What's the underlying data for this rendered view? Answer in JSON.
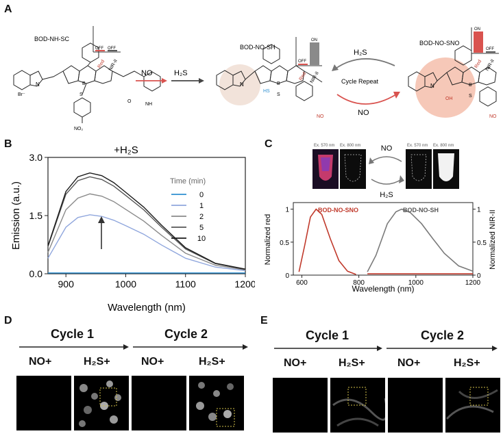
{
  "panels": {
    "a": "A",
    "b": "B",
    "c": "C",
    "d": "D",
    "e": "E"
  },
  "panelA": {
    "mol1": "BOD-NH-SC",
    "mol2": "BOD-NO-SH",
    "mol3": "BOD-NO-SNO",
    "arrowNO": "NO",
    "arrowH2S": "H₂S",
    "cycleTop": "H₂S",
    "cycleMid": "Cycle Repeat",
    "cycleBot": "NO",
    "off": "OFF",
    "on": "ON",
    "red": "Red",
    "nir": "NIR-II",
    "atomN": "N",
    "atomB": "B",
    "atomF": "F",
    "atomS": "S",
    "atomO": "O",
    "hs": "HS",
    "oh": "OH",
    "no": "NO",
    "no2": "NO₂",
    "nh": "NH",
    "br": "Br⁻"
  },
  "panelB": {
    "title": "+H₂S",
    "legendTitle": "Time (min)"
  },
  "panelC": {
    "ex570": "Ex. 570 nm",
    "ex800": "Ex. 800 nm",
    "no": "NO",
    "h2s": "H₂S",
    "sno": "BOD-NO-SNO",
    "sh": "BOD-NO-SH",
    "ylabelLeft": "Normalized red",
    "ylabelRight": "Normalized NIR-II",
    "xlabel": "Wavelength (nm)"
  },
  "panelD": {
    "cycle1": "Cycle 1",
    "cycle2": "Cycle 2",
    "no": "NO+",
    "h2s": "H₂S+"
  },
  "panelE": {
    "cycle1": "Cycle 1",
    "cycle2": "Cycle 2",
    "no": "NO+",
    "h2s": "H₂S+"
  },
  "chart_data": [
    {
      "type": "line",
      "title": "+H₂S",
      "xlabel": "Wavelength (nm)",
      "ylabel": "Emission (a.u.)",
      "xlim": [
        870,
        1200
      ],
      "ylim": [
        0,
        3.0
      ],
      "xticks": [
        900,
        1000,
        1100,
        1200
      ],
      "yticks": [
        0.0,
        1.5,
        3.0
      ],
      "legend_title": "Time (min)",
      "legend_position": "right",
      "x": [
        870,
        900,
        920,
        940,
        960,
        980,
        1000,
        1030,
        1060,
        1100,
        1150,
        1200
      ],
      "series": [
        {
          "name": "0",
          "color": "#2e8fd0",
          "values": [
            0.02,
            0.02,
            0.02,
            0.02,
            0.02,
            0.02,
            0.02,
            0.02,
            0.02,
            0.02,
            0.02,
            0.02
          ]
        },
        {
          "name": "1",
          "color": "#8fa6dd",
          "values": [
            0.4,
            1.2,
            1.45,
            1.52,
            1.48,
            1.38,
            1.24,
            1.02,
            0.74,
            0.4,
            0.17,
            0.08
          ]
        },
        {
          "name": "2",
          "color": "#8a8a8a",
          "values": [
            0.55,
            1.65,
            1.95,
            2.06,
            2.0,
            1.86,
            1.66,
            1.36,
            0.99,
            0.53,
            0.22,
            0.1
          ]
        },
        {
          "name": "5",
          "color": "#555555",
          "values": [
            0.7,
            2.05,
            2.4,
            2.5,
            2.43,
            2.26,
            2.02,
            1.65,
            1.2,
            0.64,
            0.26,
            0.11
          ]
        },
        {
          "name": "10",
          "color": "#1a1a1a",
          "values": [
            0.72,
            2.12,
            2.5,
            2.6,
            2.53,
            2.35,
            2.1,
            1.72,
            1.25,
            0.67,
            0.27,
            0.12
          ]
        }
      ]
    },
    {
      "type": "line",
      "xlabel": "Wavelength (nm)",
      "ylabel": "Normalized red",
      "ylabel_right": "Normalized NIR-II",
      "xlim": [
        570,
        1200
      ],
      "ylim": [
        0,
        1.1
      ],
      "xticks": [
        600,
        800,
        1000,
        1200
      ],
      "yticks": [
        0,
        0.5,
        1.0
      ],
      "series": [
        {
          "name": "BOD-NO-SNO",
          "color": "#c0392b",
          "x": [
            590,
            610,
            630,
            650,
            670,
            700,
            730,
            760,
            790
          ],
          "values": [
            0.05,
            0.45,
            0.88,
            1.0,
            0.92,
            0.55,
            0.22,
            0.06,
            0.01
          ]
        },
        {
          "name": "BOD-NO-SH",
          "color": "#7a7a7a",
          "x": [
            830,
            860,
            900,
            930,
            950,
            980,
            1020,
            1060,
            1100,
            1150,
            1200
          ],
          "values": [
            0.05,
            0.3,
            0.78,
            0.96,
            1.0,
            0.95,
            0.78,
            0.55,
            0.33,
            0.14,
            0.06
          ]
        },
        {
          "name": "BOD-NO-SH red",
          "color": "#c0392b",
          "x": [
            830,
            1200
          ],
          "values": [
            0.02,
            0.02
          ]
        }
      ]
    }
  ]
}
